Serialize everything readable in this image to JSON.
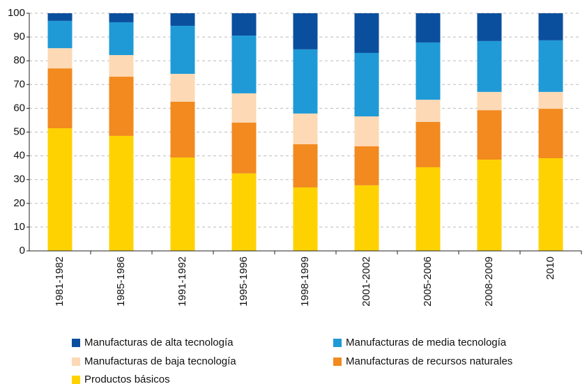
{
  "chart_data": {
    "type": "stacked_bar",
    "categories": [
      "1981-1982",
      "1985-1986",
      "1991-1992",
      "1995-1996",
      "1998-1999",
      "2001-2002",
      "2005-2006",
      "2008-2009",
      "2010"
    ],
    "series": [
      {
        "name": "Productos básicos",
        "color": "#fed200",
        "values": [
          51.6,
          48.4,
          39.3,
          32.6,
          26.7,
          27.6,
          35.2,
          38.4,
          39.0
        ]
      },
      {
        "name": "Manufacturas de recursos naturales",
        "color": "#f28a1f",
        "values": [
          25.2,
          24.9,
          23.5,
          21.4,
          18.2,
          16.4,
          19.1,
          20.8,
          20.8
        ]
      },
      {
        "name": "Manufacturas de baja tecnología",
        "color": "#fdd9b5",
        "values": [
          8.5,
          9.1,
          11.7,
          12.3,
          12.9,
          12.6,
          9.3,
          7.7,
          7.1
        ]
      },
      {
        "name": "Manufacturas de media tecnología",
        "color": "#1f9ad6",
        "values": [
          11.5,
          13.8,
          20.2,
          24.3,
          27.0,
          26.7,
          24.1,
          21.4,
          21.7
        ]
      },
      {
        "name": "Manufacturas de alta tecnología",
        "color": "#0a4f9e",
        "values": [
          3.2,
          3.8,
          5.3,
          9.4,
          15.2,
          16.7,
          12.3,
          11.7,
          11.4
        ]
      }
    ],
    "ylim": [
      0,
      100
    ],
    "yticks": [
      0,
      10,
      20,
      30,
      40,
      50,
      60,
      70,
      80,
      90,
      100
    ],
    "grid": true
  }
}
